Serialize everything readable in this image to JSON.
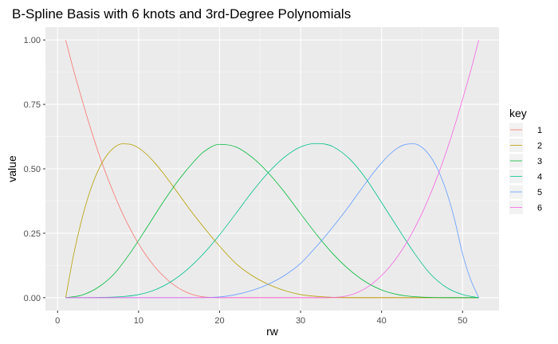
{
  "chart_data": {
    "type": "line",
    "title": "B-Spline Basis with 6 knots and 3rd-Degree Polynomials",
    "xlabel": "rw",
    "ylabel": "value",
    "xlim": [
      -1.5,
      54.5
    ],
    "ylim": [
      -0.05,
      1.05
    ],
    "x_ticks": [
      0,
      10,
      20,
      30,
      40,
      50
    ],
    "y_ticks": [
      0.0,
      0.25,
      0.5,
      0.75,
      1.0
    ],
    "x_tick_labels": [
      "0",
      "10",
      "20",
      "30",
      "40",
      "50"
    ],
    "y_tick_labels": [
      "0.00",
      "0.25",
      "0.50",
      "0.75",
      "1.00"
    ],
    "grid": true,
    "legend": {
      "title": "key",
      "position": "right"
    },
    "series": [
      {
        "name": "1",
        "color": "#F8766D",
        "x": [
          1,
          2,
          3,
          4,
          5,
          6,
          7,
          8,
          9,
          10,
          11,
          12,
          13,
          14,
          15,
          16,
          17,
          18,
          19,
          20,
          22,
          25,
          30,
          40,
          52
        ],
        "y": [
          1.0,
          0.88,
          0.77,
          0.664,
          0.567,
          0.479,
          0.4,
          0.328,
          0.265,
          0.209,
          0.161,
          0.12,
          0.086,
          0.058,
          0.036,
          0.02,
          0.009,
          0.003,
          0.001,
          0.0,
          0.0,
          0.0,
          0.0,
          0.0,
          0.0
        ]
      },
      {
        "name": "2",
        "color": "#B79F00",
        "x": [
          1,
          2,
          3,
          4,
          5,
          6,
          7,
          8,
          9,
          10,
          11,
          12,
          13,
          14,
          15,
          16,
          18,
          20,
          22,
          24,
          26,
          28,
          30,
          33,
          36,
          40,
          45,
          52
        ],
        "y": [
          0.0,
          0.17,
          0.305,
          0.413,
          0.493,
          0.549,
          0.583,
          0.597,
          0.595,
          0.581,
          0.556,
          0.523,
          0.485,
          0.443,
          0.4,
          0.356,
          0.275,
          0.2,
          0.133,
          0.086,
          0.052,
          0.028,
          0.012,
          0.003,
          0.0,
          0.0,
          0.0,
          0.0
        ]
      },
      {
        "name": "3",
        "color": "#00BA38",
        "x": [
          1,
          3,
          5,
          7,
          9,
          11,
          13,
          15,
          17,
          18,
          20,
          22,
          24,
          26,
          28,
          30,
          32,
          34,
          36,
          38,
          40,
          42,
          44,
          46,
          48,
          52
        ],
        "y": [
          0.0,
          0.01,
          0.04,
          0.093,
          0.175,
          0.271,
          0.369,
          0.459,
          0.534,
          0.565,
          0.595,
          0.585,
          0.545,
          0.485,
          0.41,
          0.326,
          0.244,
          0.17,
          0.109,
          0.062,
          0.03,
          0.012,
          0.004,
          0.001,
          0.0,
          0.0
        ]
      },
      {
        "name": "4",
        "color": "#00C08B",
        "x": [
          1,
          5,
          8,
          10,
          12,
          14,
          16,
          18,
          20,
          22,
          24,
          26,
          28,
          30,
          32,
          33,
          34,
          36,
          38,
          40,
          42,
          44,
          46,
          48,
          50,
          52
        ],
        "y": [
          0.0,
          0.001,
          0.004,
          0.012,
          0.03,
          0.062,
          0.109,
          0.17,
          0.244,
          0.326,
          0.41,
          0.485,
          0.545,
          0.585,
          0.598,
          0.596,
          0.586,
          0.54,
          0.465,
          0.369,
          0.271,
          0.175,
          0.093,
          0.04,
          0.012,
          0.0
        ]
      },
      {
        "name": "5",
        "color": "#619CFF",
        "x": [
          1,
          16,
          20,
          22,
          24,
          26,
          28,
          30,
          32,
          34,
          36,
          37,
          38,
          39,
          40,
          41,
          42,
          43,
          44,
          45,
          46,
          47,
          48,
          49,
          50,
          51,
          52
        ],
        "y": [
          0.0,
          0.0,
          0.003,
          0.012,
          0.028,
          0.052,
          0.086,
          0.133,
          0.2,
          0.275,
          0.356,
          0.4,
          0.443,
          0.485,
          0.523,
          0.556,
          0.581,
          0.595,
          0.597,
          0.583,
          0.549,
          0.493,
          0.413,
          0.305,
          0.17,
          0.07,
          0.0
        ]
      },
      {
        "name": "6",
        "color": "#F564E3",
        "x": [
          1,
          30,
          33,
          34,
          35,
          36,
          37,
          38,
          39,
          40,
          41,
          42,
          43,
          44,
          45,
          46,
          47,
          48,
          49,
          50,
          51,
          52
        ],
        "y": [
          0.0,
          0.0,
          0.0,
          0.001,
          0.003,
          0.009,
          0.02,
          0.036,
          0.058,
          0.086,
          0.12,
          0.161,
          0.209,
          0.265,
          0.328,
          0.4,
          0.479,
          0.567,
          0.664,
          0.77,
          0.88,
          1.0
        ]
      }
    ]
  }
}
